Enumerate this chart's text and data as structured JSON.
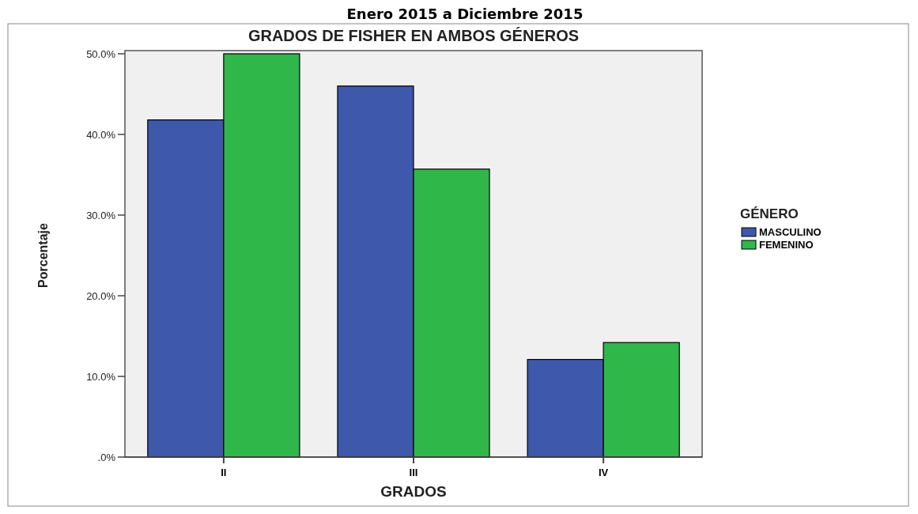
{
  "chart_data": {
    "type": "bar",
    "title": "GRADOS DE FISHER EN AMBOS GÉNEROS",
    "subtitle": "Enero 2015 a Diciembre 2015",
    "xlabel": "GRADOS",
    "ylabel": "Porcentaje",
    "legend_title": "GÉNERO",
    "categories": [
      "II",
      "III",
      "IV"
    ],
    "series": [
      {
        "name": "MASCULINO",
        "color": "#3e58ab",
        "values": [
          41.8,
          46.0,
          12.1
        ]
      },
      {
        "name": "FEMENINO",
        "color": "#2fb74a",
        "values": [
          50.0,
          35.7,
          14.2
        ]
      }
    ],
    "ylim": [
      0,
      50
    ],
    "yticks": [
      {
        "value": 0,
        "label": ".0%"
      },
      {
        "value": 10,
        "label": "10.0%"
      },
      {
        "value": 20,
        "label": "20.0%"
      },
      {
        "value": 30,
        "label": "30.0%"
      },
      {
        "value": 40,
        "label": "40.0%"
      },
      {
        "value": 50,
        "label": "50.0%"
      }
    ],
    "grid": false,
    "legend": "right"
  }
}
